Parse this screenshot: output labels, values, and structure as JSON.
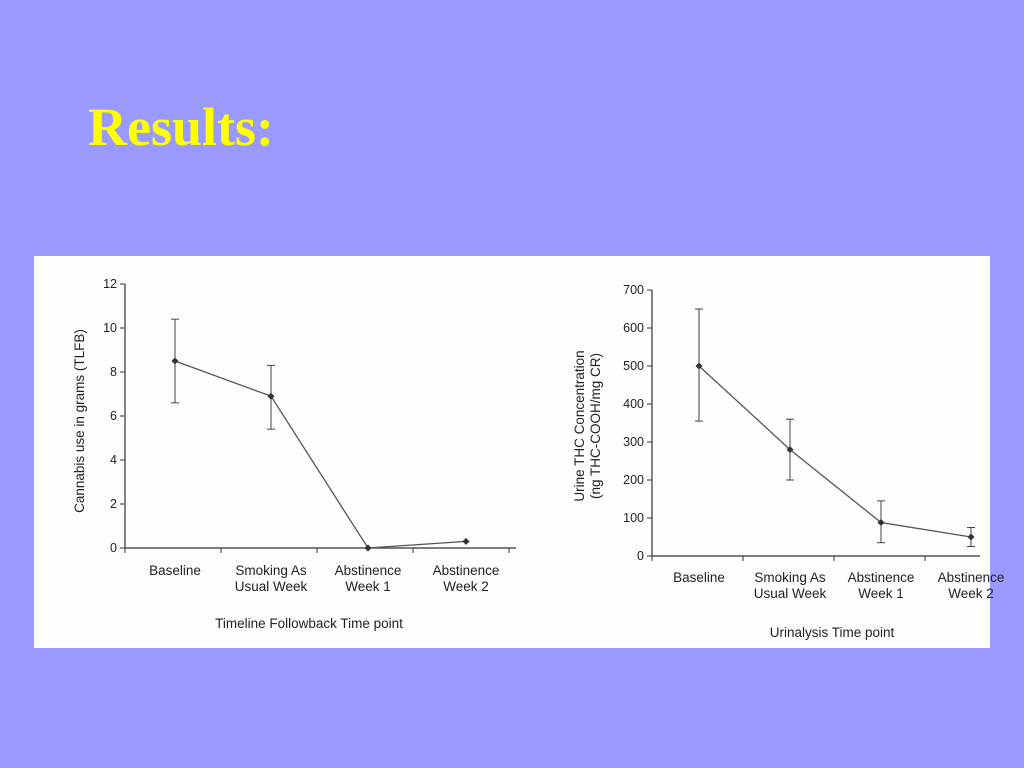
{
  "slide": {
    "title": "Results:"
  },
  "chart_data": [
    {
      "type": "line",
      "categories": [
        "Baseline",
        "Smoking As\nUsual Week",
        "Abstinence\nWeek 1",
        "Abstinence\nWeek 2"
      ],
      "series": [
        {
          "values": [
            8.5,
            6.9,
            0,
            0.3
          ],
          "error_low": [
            6.6,
            5.4,
            0,
            0.3
          ],
          "error_high": [
            10.4,
            8.3,
            0,
            0.3
          ]
        }
      ],
      "ylabel": "Cannabis use in grams (TLFB)",
      "xlabel": "Timeline Followback Time point",
      "ylim": [
        0,
        12
      ],
      "yticks": [
        0,
        2,
        4,
        6,
        8,
        10,
        12
      ],
      "line_color": "#555555"
    },
    {
      "type": "line",
      "categories": [
        "Baseline",
        "Smoking As\nUsual Week",
        "Abstinence\nWeek 1",
        "Abstinence\nWeek 2"
      ],
      "series": [
        {
          "values": [
            500,
            280,
            88,
            50
          ],
          "error_low": [
            355,
            200,
            35,
            25
          ],
          "error_high": [
            650,
            360,
            145,
            75
          ]
        }
      ],
      "ylabel": "Urine THC Concentration\n(ng THC-COOH/mg CR)",
      "xlabel": "Urinalysis Time point",
      "ylim": [
        0,
        700
      ],
      "yticks": [
        0,
        100,
        200,
        300,
        400,
        500,
        600,
        700
      ],
      "line_color": "#555555"
    }
  ]
}
